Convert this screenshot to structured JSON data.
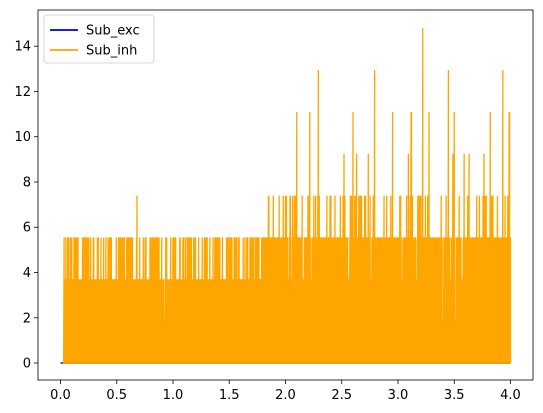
{
  "chart_data": {
    "type": "line",
    "xlim": [
      -0.2,
      4.2
    ],
    "ylim": [
      -0.75,
      15.6
    ],
    "x_ticks": [
      0.0,
      0.5,
      1.0,
      1.5,
      2.0,
      2.5,
      3.0,
      3.5,
      4.0
    ],
    "x_tick_labels": [
      "0.0",
      "0.5",
      "1.0",
      "1.5",
      "2.0",
      "2.5",
      "3.0",
      "3.5",
      "4.0"
    ],
    "y_ticks": [
      0,
      2,
      4,
      6,
      8,
      10,
      12,
      14
    ],
    "y_tick_labels": [
      "0",
      "2",
      "4",
      "6",
      "8",
      "10",
      "12",
      "14"
    ],
    "grid": false,
    "legend_position": "top-left",
    "series": [
      {
        "name": "Sub_exc",
        "color": "#0000cd",
        "x": [
          0.0,
          4.0
        ],
        "y": [
          0,
          0
        ]
      },
      {
        "name": "Sub_inh",
        "color": "#ffa500",
        "segments": [
          {
            "x0": 0.0,
            "x1": 0.5,
            "base": 3.7,
            "levels": [
              5.55
            ]
          },
          {
            "x0": 0.5,
            "x1": 1.0,
            "base": 3.7,
            "levels": [
              5.55,
              7.4
            ]
          },
          {
            "x0": 1.0,
            "x1": 1.8,
            "base": 3.7,
            "levels": [
              5.55
            ]
          },
          {
            "x0": 1.8,
            "x1": 2.5,
            "base": 5.55,
            "levels": [
              7.4,
              9.25,
              11.1,
              12.95
            ]
          },
          {
            "x0": 2.5,
            "x1": 3.2,
            "base": 5.55,
            "levels": [
              7.4,
              9.25,
              11.1,
              12.95
            ]
          },
          {
            "x0": 3.2,
            "x1": 4.0,
            "base": 5.55,
            "levels": [
              7.4,
              9.25,
              11.1,
              12.95,
              14.8
            ]
          }
        ],
        "peaks": [
          {
            "x": 0.68,
            "y": 7.4
          },
          {
            "x": 2.1,
            "y": 11.1
          },
          {
            "x": 2.29,
            "y": 12.95
          },
          {
            "x": 2.6,
            "y": 11.1
          },
          {
            "x": 2.79,
            "y": 12.95
          },
          {
            "x": 3.22,
            "y": 14.8
          },
          {
            "x": 3.5,
            "y": 11.1
          },
          {
            "x": 3.93,
            "y": 12.95
          },
          {
            "x": 3.99,
            "y": 11.1
          }
        ]
      }
    ]
  }
}
